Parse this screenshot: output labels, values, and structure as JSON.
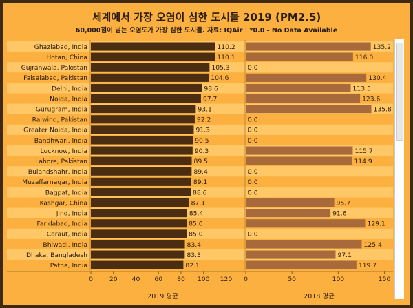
{
  "title": "세계에서 가장 오염이 심한 도시들 2019 (PM2.5)",
  "subtitle": "60,000점이 넘는 오염도가 가장 심한 도시들. 자료: IQAir | *0.0 - No Data Available",
  "colors": {
    "background": "#fbb040",
    "frame": "#3e2a12",
    "row_band": "#ffc766",
    "bar_2019": "#4b2e12",
    "bar_2018": "#a86a3a",
    "text": "#2b1d0e"
  },
  "chart_data": {
    "type": "bar",
    "orientation": "horizontal",
    "categories": [
      "Ghaziabad, India",
      "Hotan, China",
      "Gujranwala, Pakistan",
      "Faisalabad, Pakistan",
      "Delhi, India",
      "Noida, India",
      "Gurugram, India",
      "Raiwind, Pakistan",
      "Greater Noida, India",
      "Bandhwari, India",
      "Lucknow, India",
      "Lahore, Pakistan",
      "Bulandshahr, India",
      "Muzaffarnagar, India",
      "Bagpat, India",
      "Kashgar, China",
      "Jind, India",
      "Faridabad, India",
      "Coraut, India",
      "Bhiwadi, India",
      "Dhaka, Bangladesh",
      "Patna, India"
    ],
    "series": [
      {
        "name": "2019 평균",
        "values": [
          110.2,
          110.1,
          105.3,
          104.6,
          98.6,
          97.7,
          93.1,
          92.2,
          91.3,
          90.5,
          90.3,
          89.5,
          89.4,
          89.1,
          88.6,
          87.1,
          85.4,
          85.0,
          85.0,
          83.4,
          83.3,
          82.1
        ],
        "labels": [
          "110.2",
          "110.1",
          "105.3",
          "104.6",
          "98.6",
          "97.7",
          "93.1",
          "92.2",
          "91.3",
          "90.5",
          "90.3",
          "89.5",
          "89.4",
          "89.1",
          "88.6",
          "87.1",
          "85.4",
          "85.0",
          "85.0",
          "83.4",
          "83.3",
          "82.1"
        ],
        "xlim": [
          0,
          135
        ],
        "ticks": [
          0,
          20,
          40,
          60,
          80,
          100,
          120
        ]
      },
      {
        "name": "2018 평균",
        "values": [
          135.2,
          116.0,
          0.0,
          130.4,
          113.5,
          123.6,
          135.8,
          0.0,
          0.0,
          0.0,
          115.7,
          114.9,
          0.0,
          0.0,
          0.0,
          95.7,
          91.6,
          129.1,
          0.0,
          125.4,
          97.1,
          119.7
        ],
        "labels": [
          "135.2",
          "116.0",
          "0.0",
          "130.4",
          "113.5",
          "123.6",
          "135.8",
          "0.0",
          "0.0",
          "0.0",
          "115.7",
          "114.9",
          "0.0",
          "0.0",
          "0.0",
          "95.7",
          "91.6",
          "129.1",
          "0.0",
          "125.4",
          "97.1",
          "119.7"
        ],
        "xlim": [
          0,
          160
        ],
        "ticks": [
          0,
          50,
          100,
          150
        ]
      }
    ],
    "grid": false,
    "legend": "none"
  }
}
